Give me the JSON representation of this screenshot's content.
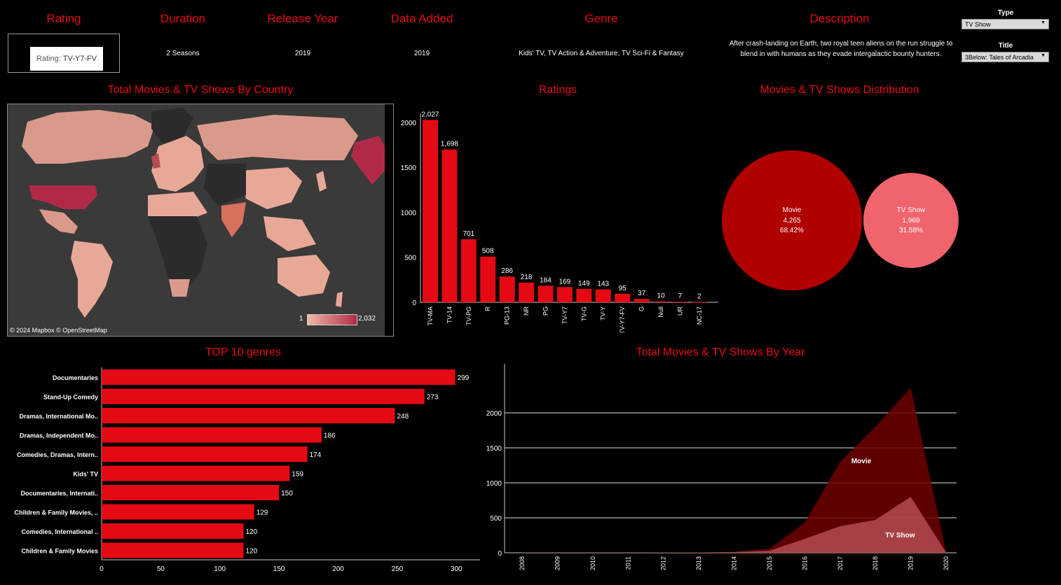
{
  "header": {
    "rating_title": "Rating",
    "duration_title": "Duration",
    "release_year_title": "Release Year",
    "date_added_title": "Data Added",
    "genre_title": "Genre",
    "description_title": "Description"
  },
  "details": {
    "rating_prefix": "Rating:",
    "rating_value": "TV-Y7-FV",
    "duration": "2 Seasons",
    "release_year": "2019",
    "date_added": "2019",
    "genre": "Kids' TV, TV Action & Adventure, TV Sci-Fi & Fantasy",
    "description": "After crash-landing on Earth, two royal teen aliens on the run struggle to blend in with humans as they evade intergalactic bounty hunters."
  },
  "filters": {
    "type_label": "Type",
    "type_value": "TV Show",
    "title_label": "Title",
    "title_value": "3Below: Tales of Arcadia"
  },
  "map": {
    "title": "Total Movies & TV Shows By Country",
    "credit": "© 2024 Mapbox  © OpenStreetMap",
    "legend_min": "1",
    "legend_max": "2,032",
    "colors": {
      "low": "#f0b8a8",
      "high": "#b02a48",
      "nodata": "#2b2b2b",
      "water": "#3a3a3a"
    }
  },
  "ratings_title": "Ratings",
  "distribution_title": "Movies & TV Shows Distribution",
  "genres_title": "TOP 10 genres",
  "year_title": "Total Movies & TV Shows By Year",
  "chart_data": [
    {
      "type": "bar",
      "title": "Ratings",
      "categories": [
        "TV-MA",
        "TV-14",
        "TV-PG",
        "R",
        "PG-13",
        "NR",
        "PG",
        "TV-Y7",
        "TV-G",
        "TV-Y",
        "TV-Y7-FV",
        "G",
        "Null",
        "UR",
        "NC-17"
      ],
      "values": [
        2027,
        1698,
        701,
        508,
        286,
        218,
        184,
        169,
        149,
        143,
        95,
        37,
        10,
        7,
        2
      ],
      "data_labels": [
        "2,027",
        "1,698",
        "701",
        "508",
        "286",
        "218",
        "184",
        "169",
        "149",
        "143",
        "95",
        "37",
        "10",
        "7",
        "2"
      ],
      "ylim": [
        0,
        2100
      ],
      "yticks": [
        0,
        500,
        1000,
        1500,
        2000
      ],
      "color": "#e50914"
    },
    {
      "type": "pie",
      "title": "Movies & TV Shows Distribution",
      "categories": [
        "Movie",
        "TV Show"
      ],
      "values": [
        4265,
        1969
      ],
      "value_labels": [
        "4,265",
        "1,969"
      ],
      "percent_labels": [
        "68.42%",
        "31.58%"
      ],
      "colors": [
        "#b00000",
        "#f0646e"
      ]
    },
    {
      "type": "bar",
      "title": "TOP 10 genres",
      "orientation": "horizontal",
      "categories": [
        "Documentaries",
        "Stand-Up Comedy",
        "Dramas, International Mo..",
        "Dramas, Independent Mo..",
        "Comedies, Dramas, Intern..",
        "Kids' TV",
        "Documentaries, Internati..",
        "Children & Family Movies, ..",
        "Comedies, International ..",
        "Children & Family Movies"
      ],
      "values": [
        299,
        273,
        248,
        186,
        174,
        159,
        150,
        129,
        120,
        120
      ],
      "xlim": [
        0,
        320
      ],
      "xticks": [
        0,
        50,
        100,
        150,
        200,
        250,
        300
      ],
      "color": "#e50914"
    },
    {
      "type": "area",
      "title": "Total Movies & TV Shows By Year",
      "x": [
        "2008",
        "2009",
        "2010",
        "2011",
        "2012",
        "2013",
        "2014",
        "2015",
        "2016",
        "2017",
        "2018",
        "2019",
        "2020"
      ],
      "series": [
        {
          "name": "Movie",
          "values": [
            1,
            1,
            1,
            1,
            2,
            5,
            15,
            60,
            430,
            1300,
            1800,
            2360,
            10
          ],
          "color": "#6e0000"
        },
        {
          "name": "TV Show",
          "values": [
            1,
            1,
            1,
            1,
            2,
            4,
            10,
            30,
            200,
            380,
            470,
            800,
            5
          ],
          "color": "#b44a52"
        }
      ],
      "ylim": [
        0,
        2500
      ],
      "yticks": [
        0,
        500,
        1000,
        1500,
        2000
      ],
      "grid": true
    }
  ]
}
